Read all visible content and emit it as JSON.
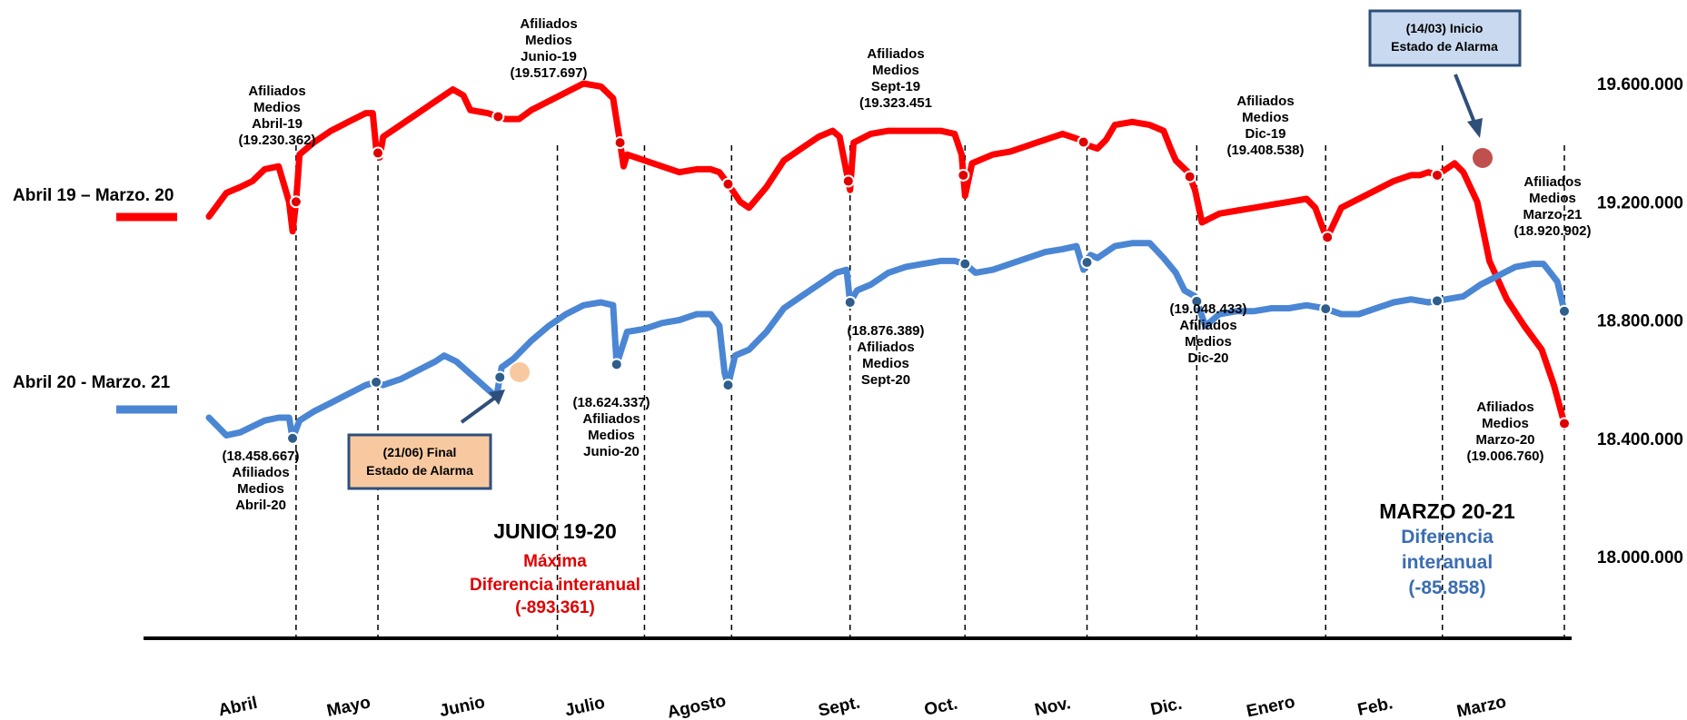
{
  "chart_data": {
    "type": "line",
    "ylim": [
      17800000,
      19800000
    ],
    "yticks": [
      "19.600.000",
      "19.200.000",
      "18.800.000",
      "18.400.000",
      "18.000.000"
    ],
    "ytick_values": [
      19600000,
      19200000,
      18800000,
      18400000,
      18000000
    ],
    "months": [
      "Abril",
      "Mayo",
      "Junio",
      "Julio",
      "Agosto",
      "Sept.",
      "Oct.",
      "Nov.",
      "Dic.",
      "Enero",
      "Feb.",
      "Marzo"
    ],
    "legend_placement": "left",
    "grid": false,
    "series": [
      {
        "name": "Abril 19 – Marzo. 20",
        "color": "#ff0000",
        "points": [
          [
            0,
            19150000
          ],
          [
            0.05,
            19190000
          ],
          [
            0.1,
            19230000
          ],
          [
            0.18,
            19250000
          ],
          [
            0.25,
            19270000
          ],
          [
            0.32,
            19310000
          ],
          [
            0.4,
            19320000
          ],
          [
            0.46,
            19200000
          ],
          [
            0.48,
            19100000
          ],
          [
            0.5,
            19200000
          ],
          [
            0.52,
            19360000
          ],
          [
            0.6,
            19400000
          ],
          [
            0.7,
            19440000
          ],
          [
            0.8,
            19470000
          ],
          [
            0.9,
            19500000
          ],
          [
            0.94,
            19500000
          ],
          [
            0.96,
            19380000
          ],
          [
            0.98,
            19350000
          ],
          [
            1.0,
            19420000
          ],
          [
            1.1,
            19460000
          ],
          [
            1.2,
            19500000
          ],
          [
            1.3,
            19540000
          ],
          [
            1.4,
            19580000
          ],
          [
            1.46,
            19560000
          ],
          [
            1.5,
            19510000
          ],
          [
            1.6,
            19500000
          ],
          [
            1.7,
            19480000
          ],
          [
            1.78,
            19480000
          ],
          [
            1.85,
            19510000
          ],
          [
            1.95,
            19540000
          ],
          [
            2.05,
            19570000
          ],
          [
            2.15,
            19600000
          ],
          [
            2.25,
            19590000
          ],
          [
            2.32,
            19550000
          ],
          [
            2.36,
            19400000
          ],
          [
            2.38,
            19320000
          ],
          [
            2.4,
            19360000
          ],
          [
            2.5,
            19340000
          ],
          [
            2.6,
            19320000
          ],
          [
            2.7,
            19300000
          ],
          [
            2.8,
            19310000
          ],
          [
            2.88,
            19310000
          ],
          [
            2.93,
            19300000
          ],
          [
            2.98,
            19260000
          ],
          [
            3.05,
            19200000
          ],
          [
            3.1,
            19180000
          ],
          [
            3.2,
            19250000
          ],
          [
            3.3,
            19340000
          ],
          [
            3.4,
            19380000
          ],
          [
            3.5,
            19420000
          ],
          [
            3.58,
            19440000
          ],
          [
            3.62,
            19420000
          ],
          [
            3.66,
            19300000
          ],
          [
            3.68,
            19240000
          ],
          [
            3.7,
            19400000
          ],
          [
            3.8,
            19430000
          ],
          [
            3.9,
            19440000
          ],
          [
            4.0,
            19440000
          ],
          [
            4.1,
            19440000
          ],
          [
            4.2,
            19440000
          ],
          [
            4.28,
            19430000
          ],
          [
            4.32,
            19360000
          ],
          [
            4.34,
            19220000
          ],
          [
            4.38,
            19330000
          ],
          [
            4.5,
            19360000
          ],
          [
            4.6,
            19370000
          ],
          [
            4.7,
            19390000
          ],
          [
            4.8,
            19410000
          ],
          [
            4.9,
            19430000
          ],
          [
            5.0,
            19410000
          ],
          [
            5.05,
            19390000
          ],
          [
            5.1,
            19380000
          ],
          [
            5.15,
            19410000
          ],
          [
            5.2,
            19460000
          ],
          [
            5.3,
            19470000
          ],
          [
            5.4,
            19460000
          ],
          [
            5.48,
            19440000
          ],
          [
            5.52,
            19380000
          ],
          [
            5.55,
            19340000
          ],
          [
            5.62,
            19300000
          ],
          [
            5.66,
            19240000
          ],
          [
            5.7,
            19130000
          ],
          [
            5.8,
            19160000
          ],
          [
            5.9,
            19170000
          ],
          [
            6.0,
            19180000
          ],
          [
            6.1,
            19190000
          ],
          [
            6.2,
            19200000
          ],
          [
            6.3,
            19210000
          ],
          [
            6.35,
            19180000
          ],
          [
            6.4,
            19100000
          ],
          [
            6.42,
            19080000
          ],
          [
            6.5,
            19180000
          ],
          [
            6.6,
            19210000
          ],
          [
            6.7,
            19240000
          ],
          [
            6.8,
            19270000
          ],
          [
            6.9,
            19290000
          ],
          [
            6.95,
            19290000
          ],
          [
            7.0,
            19300000
          ],
          [
            7.05,
            19290000
          ],
          [
            7.1,
            19310000
          ],
          [
            7.15,
            19330000
          ],
          [
            7.2,
            19300000
          ],
          [
            7.28,
            19200000
          ],
          [
            7.35,
            19000000
          ],
          [
            7.45,
            18870000
          ],
          [
            7.55,
            18780000
          ],
          [
            7.65,
            18700000
          ],
          [
            7.72,
            18580000
          ],
          [
            7.78,
            18450000
          ]
        ]
      },
      {
        "name": "Abril 20 -  Marzo. 21",
        "color": "#4a86d4",
        "points": [
          [
            0,
            18470000
          ],
          [
            0.05,
            18440000
          ],
          [
            0.1,
            18410000
          ],
          [
            0.18,
            18420000
          ],
          [
            0.25,
            18440000
          ],
          [
            0.32,
            18460000
          ],
          [
            0.4,
            18470000
          ],
          [
            0.46,
            18470000
          ],
          [
            0.48,
            18400000
          ],
          [
            0.52,
            18460000
          ],
          [
            0.6,
            18490000
          ],
          [
            0.7,
            18520000
          ],
          [
            0.8,
            18550000
          ],
          [
            0.9,
            18580000
          ],
          [
            0.96,
            18590000
          ],
          [
            1.0,
            18580000
          ],
          [
            1.1,
            18600000
          ],
          [
            1.2,
            18630000
          ],
          [
            1.3,
            18660000
          ],
          [
            1.35,
            18680000
          ],
          [
            1.42,
            18660000
          ],
          [
            1.65,
            18540000
          ],
          [
            1.68,
            18640000
          ],
          [
            1.75,
            18670000
          ],
          [
            1.85,
            18730000
          ],
          [
            1.95,
            18780000
          ],
          [
            2.05,
            18820000
          ],
          [
            2.15,
            18850000
          ],
          [
            2.25,
            18860000
          ],
          [
            2.32,
            18850000
          ],
          [
            2.34,
            18650000
          ],
          [
            2.4,
            18760000
          ],
          [
            2.5,
            18770000
          ],
          [
            2.6,
            18790000
          ],
          [
            2.7,
            18800000
          ],
          [
            2.8,
            18820000
          ],
          [
            2.88,
            18820000
          ],
          [
            2.93,
            18780000
          ],
          [
            2.96,
            18620000
          ],
          [
            2.98,
            18580000
          ],
          [
            3.02,
            18680000
          ],
          [
            3.1,
            18700000
          ],
          [
            3.2,
            18760000
          ],
          [
            3.3,
            18840000
          ],
          [
            3.4,
            18880000
          ],
          [
            3.5,
            18920000
          ],
          [
            3.6,
            18960000
          ],
          [
            3.66,
            18970000
          ],
          [
            3.68,
            18860000
          ],
          [
            3.72,
            18900000
          ],
          [
            3.8,
            18920000
          ],
          [
            3.9,
            18960000
          ],
          [
            4.0,
            18980000
          ],
          [
            4.1,
            18990000
          ],
          [
            4.2,
            19000000
          ],
          [
            4.28,
            19000000
          ],
          [
            4.34,
            18990000
          ],
          [
            4.4,
            18960000
          ],
          [
            4.5,
            18970000
          ],
          [
            4.6,
            18990000
          ],
          [
            4.7,
            19010000
          ],
          [
            4.8,
            19030000
          ],
          [
            4.9,
            19040000
          ],
          [
            4.98,
            19050000
          ],
          [
            5.02,
            18970000
          ],
          [
            5.06,
            19020000
          ],
          [
            5.1,
            19010000
          ],
          [
            5.2,
            19050000
          ],
          [
            5.3,
            19060000
          ],
          [
            5.4,
            19060000
          ],
          [
            5.48,
            19010000
          ],
          [
            5.55,
            18960000
          ],
          [
            5.6,
            18900000
          ],
          [
            5.66,
            18880000
          ],
          [
            5.72,
            18780000
          ],
          [
            5.8,
            18820000
          ],
          [
            5.9,
            18830000
          ],
          [
            6.0,
            18830000
          ],
          [
            6.1,
            18840000
          ],
          [
            6.2,
            18840000
          ],
          [
            6.3,
            18850000
          ],
          [
            6.4,
            18840000
          ],
          [
            6.5,
            18820000
          ],
          [
            6.6,
            18820000
          ],
          [
            6.7,
            18840000
          ],
          [
            6.8,
            18860000
          ],
          [
            6.9,
            18870000
          ],
          [
            7.0,
            18860000
          ],
          [
            7.1,
            18870000
          ],
          [
            7.2,
            18880000
          ],
          [
            7.3,
            18920000
          ],
          [
            7.4,
            18950000
          ],
          [
            7.5,
            18980000
          ],
          [
            7.6,
            18990000
          ],
          [
            7.66,
            18990000
          ],
          [
            7.7,
            18960000
          ],
          [
            7.74,
            18930000
          ],
          [
            7.78,
            18830000
          ]
        ]
      }
    ],
    "annotations_red": [
      {
        "lines": [
          "Afiliados",
          "Medios",
          "Abril-19",
          "(19.230.362)"
        ]
      },
      {
        "lines": [
          "Afiliados",
          "Medios",
          "Junio-19",
          "(19.517.697)"
        ]
      },
      {
        "lines": [
          "Afiliados",
          "Medios",
          "Sept-19",
          "(19.323.451"
        ]
      },
      {
        "lines": [
          "Afiliados",
          "Medios",
          "Dic-19",
          "(19.408.538)"
        ]
      },
      {
        "lines": [
          "Afiliados",
          "Medios",
          "Marzo-21",
          "(18.920.902)"
        ]
      },
      {
        "lines": [
          "Afiliados",
          "Medios",
          "Marzo-20",
          "(19.006.760)"
        ]
      }
    ],
    "annotations_blue": [
      {
        "lines": [
          "(18.458.667)",
          "Afiliados",
          "Medios",
          "Abril-20"
        ]
      },
      {
        "lines": [
          "(18.624.337)",
          "Afiliados",
          "Medios",
          "Junio-20"
        ]
      },
      {
        "lines": [
          "(18.876.389)",
          "Afiliados",
          "Medios",
          "Sept-20"
        ]
      },
      {
        "lines": [
          "(19.048.433)",
          "Afiliados",
          "Medios",
          "Dic-20"
        ]
      }
    ],
    "box_final": {
      "line1": "(21/06) Final",
      "line2": "Estado de Alarma",
      "fill": "#f8c9a0"
    },
    "box_inicio": {
      "line1": "(14/03) Inicio",
      "line2": "Estado de Alarma",
      "fill": "#c9d9ef"
    },
    "junio": {
      "title": "JUNIO 19-20",
      "line1": "Máxima",
      "line2": "Diferencia interanual",
      "value": "(-893.361)"
    },
    "marzo": {
      "title": "MARZO 20-21",
      "line1": "Diferencia",
      "line2": "interanual",
      "value": "(-85.858)"
    }
  }
}
